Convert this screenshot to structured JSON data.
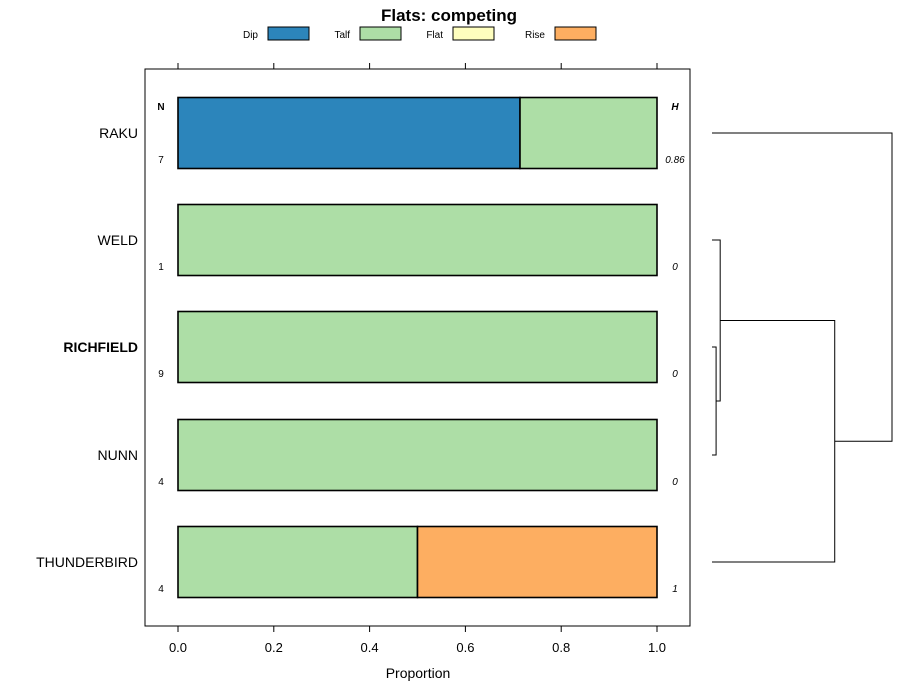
{
  "chart_data": {
    "type": "bar",
    "orientation": "horizontal",
    "stacked": true,
    "title": "Flats: competing",
    "xlabel": "Proportion",
    "ylabel": "",
    "xlim": [
      0,
      1
    ],
    "x_ticks": [
      0.0,
      0.2,
      0.4,
      0.6,
      0.8,
      1.0
    ],
    "x_tick_labels": [
      "0.0",
      "0.2",
      "0.4",
      "0.6",
      "0.8",
      "1.0"
    ],
    "legend": {
      "placement": "top",
      "entries": [
        {
          "name": "Dip",
          "color": "#2c85bb"
        },
        {
          "name": "Talf",
          "color": "#addea6"
        },
        {
          "name": "Flat",
          "color": "#fefebe"
        },
        {
          "name": "Rise",
          "color": "#fdae61"
        }
      ]
    },
    "n_header": "N",
    "h_header": "H",
    "categories": [
      "RAKU",
      "WELD",
      "RICHFIELD",
      "NUNN",
      "THUNDERBIRD"
    ],
    "bold_category": "RICHFIELD",
    "n_values": [
      "7",
      "1",
      "9",
      "4",
      "4"
    ],
    "h_values": [
      "0.86",
      "0",
      "0",
      "0",
      "1"
    ],
    "series": [
      {
        "name": "Dip",
        "values": [
          0.714,
          0,
          0,
          0,
          0
        ]
      },
      {
        "name": "Talf",
        "values": [
          0.286,
          1,
          1,
          1,
          0.5
        ]
      },
      {
        "name": "Flat",
        "values": [
          0,
          0,
          0,
          0,
          0
        ]
      },
      {
        "name": "Rise",
        "values": [
          0,
          0,
          0,
          0,
          0.5
        ]
      }
    ],
    "dendrogram": {
      "leaves": [
        "RAKU",
        "WELD",
        "RICHFIELD",
        "NUNN",
        "THUNDERBIRD"
      ],
      "merges": [
        {
          "left": "RICHFIELD",
          "right": "NUNN",
          "height": 0.05
        },
        {
          "left": "WELD",
          "right": "RICHFIELD+NUNN",
          "height": 0.1
        },
        {
          "left": "THUNDERBIRD",
          "right": "WELD+RICHFIELD+NUNN",
          "height": 1.5
        },
        {
          "left": "RAKU",
          "right": "THUNDERBIRD+WELD+RICHFIELD+NUNN",
          "height": 2.2
        }
      ],
      "max_height": 2.2
    }
  }
}
